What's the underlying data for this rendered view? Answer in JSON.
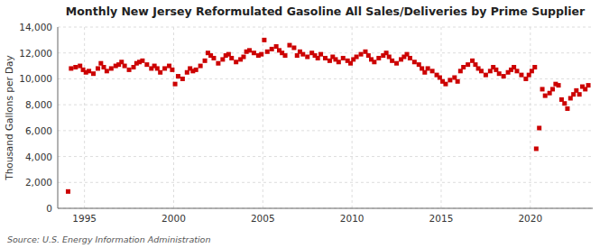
{
  "chart_data": {
    "type": "scatter",
    "title": "Monthly New Jersey Reformulated Gasoline All Sales/Deliveries by Prime Supplier",
    "ylabel": "Thousand Gallons per Day",
    "annotations": [
      "Source: U.S. Energy Information Administration"
    ],
    "color": "#cc0000",
    "marker": "square",
    "grid": true,
    "xlim": [
      1993.5,
      2023.5
    ],
    "xticks": [
      1995,
      2000,
      2005,
      2010,
      2015,
      2020
    ],
    "ylim": [
      0,
      14000
    ],
    "yticks": [
      0,
      {
        "value": 2000,
        "label": "2,000"
      },
      {
        "value": 4000,
        "label": "4,000"
      },
      {
        "value": 6000,
        "label": "6,000"
      },
      {
        "value": 8000,
        "label": "8,000"
      },
      {
        "value": 10000,
        "label": "10,000"
      },
      {
        "value": 12000,
        "label": "12,000"
      },
      {
        "value": 14000,
        "label": "14,000"
      }
    ],
    "x": [
      1994.08,
      1994.25,
      1994.5,
      1994.75,
      1994.92,
      1995.08,
      1995.25,
      1995.5,
      1995.75,
      1995.92,
      1996.08,
      1996.25,
      1996.5,
      1996.75,
      1996.92,
      1997.08,
      1997.25,
      1997.5,
      1997.75,
      1997.92,
      1998.08,
      1998.25,
      1998.5,
      1998.75,
      1998.92,
      1999.08,
      1999.25,
      1999.5,
      1999.75,
      1999.92,
      2000.08,
      2000.25,
      2000.5,
      2000.75,
      2000.92,
      2001.08,
      2001.25,
      2001.5,
      2001.75,
      2001.92,
      2002.08,
      2002.25,
      2002.5,
      2002.75,
      2002.92,
      2003.08,
      2003.25,
      2003.5,
      2003.75,
      2003.92,
      2004.08,
      2004.25,
      2004.5,
      2004.75,
      2004.92,
      2005.08,
      2005.25,
      2005.5,
      2005.75,
      2005.92,
      2006.08,
      2006.25,
      2006.5,
      2006.75,
      2006.92,
      2007.08,
      2007.25,
      2007.5,
      2007.75,
      2007.92,
      2008.08,
      2008.25,
      2008.5,
      2008.75,
      2008.92,
      2009.08,
      2009.25,
      2009.5,
      2009.75,
      2009.92,
      2010.08,
      2010.25,
      2010.5,
      2010.75,
      2010.92,
      2011.08,
      2011.25,
      2011.5,
      2011.75,
      2011.92,
      2012.08,
      2012.25,
      2012.5,
      2012.75,
      2012.92,
      2013.08,
      2013.25,
      2013.5,
      2013.75,
      2013.92,
      2014.08,
      2014.25,
      2014.5,
      2014.75,
      2014.92,
      2015.08,
      2015.25,
      2015.5,
      2015.75,
      2015.92,
      2016.08,
      2016.25,
      2016.5,
      2016.75,
      2016.92,
      2017.08,
      2017.25,
      2017.5,
      2017.75,
      2017.92,
      2018.08,
      2018.25,
      2018.5,
      2018.75,
      2018.92,
      2019.08,
      2019.25,
      2019.5,
      2019.75,
      2019.92,
      2020.08,
      2020.25,
      2020.33,
      2020.5,
      2020.67,
      2020.83,
      2021.08,
      2021.25,
      2021.42,
      2021.58,
      2021.75,
      2021.92,
      2022.08,
      2022.25,
      2022.42,
      2022.58,
      2022.75,
      2022.92,
      2023.08,
      2023.25
    ],
    "values": [
      1300,
      10800,
      10900,
      11000,
      10700,
      10500,
      10600,
      10400,
      10800,
      11200,
      10900,
      10600,
      10800,
      11000,
      11100,
      11300,
      11000,
      10700,
      10900,
      11200,
      11300,
      11400,
      11100,
      10800,
      11000,
      10800,
      10500,
      10800,
      11000,
      10700,
      9600,
      10200,
      10000,
      10500,
      10800,
      10600,
      10700,
      11000,
      11400,
      12000,
      11800,
      11600,
      11200,
      11500,
      11800,
      11900,
      11600,
      11300,
      11500,
      11700,
      12100,
      12200,
      12000,
      11800,
      11900,
      13000,
      12100,
      12300,
      12500,
      12200,
      12000,
      11800,
      12600,
      12400,
      11800,
      12100,
      11900,
      11700,
      12000,
      11800,
      11600,
      11900,
      11600,
      11400,
      11700,
      11500,
      11300,
      11600,
      11400,
      11200,
      11500,
      11700,
      11900,
      12100,
      11800,
      11500,
      11300,
      11600,
      11800,
      12000,
      11700,
      11400,
      11200,
      11500,
      11700,
      11900,
      11600,
      11300,
      11100,
      10800,
      10500,
      10800,
      10600,
      10300,
      10100,
      9800,
      9600,
      9900,
      10100,
      9800,
      10600,
      10900,
      11100,
      11400,
      11100,
      10800,
      10600,
      10300,
      10600,
      10900,
      10700,
      10400,
      10200,
      10500,
      10700,
      10900,
      10600,
      10300,
      10000,
      10300,
      10600,
      10900,
      4600,
      6200,
      9200,
      8700,
      8900,
      9200,
      9600,
      9500,
      8400,
      8100,
      7700,
      8500,
      8800,
      9100,
      8800,
      9400,
      9200,
      9500
    ]
  }
}
